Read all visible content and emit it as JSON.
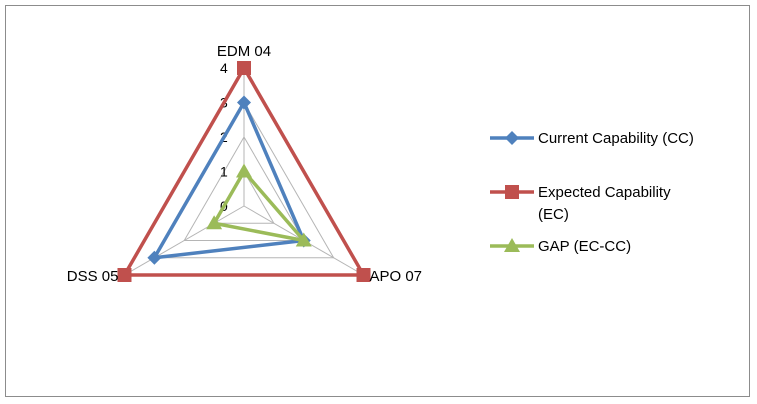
{
  "chart_data": {
    "type": "radar",
    "categories": [
      "EDM 04",
      "APO 07",
      "DSS 05"
    ],
    "rlim": [
      0,
      4
    ],
    "ticks": [
      "0",
      "1",
      "2",
      "3",
      "4"
    ],
    "grid": true,
    "legend_position": "right",
    "series": [
      {
        "name": "Current Capability (CC)",
        "values": [
          3,
          2,
          3
        ],
        "color": "#4F81BD",
        "marker": "diamond"
      },
      {
        "name": "Expected Capability (EC)",
        "values": [
          4,
          4,
          4
        ],
        "color": "#C0504D",
        "marker": "square"
      },
      {
        "name": "GAP  (EC-CC)",
        "values": [
          1,
          2,
          1
        ],
        "color": "#9BBB59",
        "marker": "triangle"
      }
    ]
  },
  "legend": {
    "items": [
      {
        "lines": [
          "Current Capability (CC)"
        ]
      },
      {
        "lines": [
          " Expected Capability",
          "(EC)"
        ]
      },
      {
        "lines": [
          "GAP  (EC-CC)"
        ]
      }
    ]
  }
}
